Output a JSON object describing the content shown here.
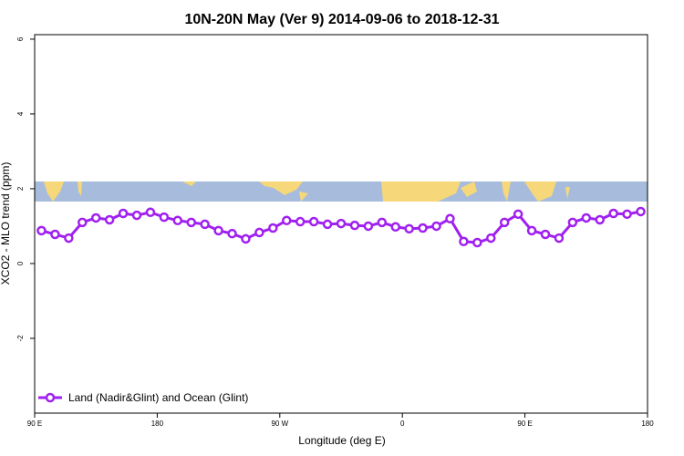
{
  "chart_data": {
    "type": "line",
    "title": "10N-20N May (Ver 9)   2014-09-06 to 2018-12-31",
    "x_label": "Longitude (deg E)",
    "y_label": "XCO2 - MLO trend (ppm)",
    "x": [
      95,
      105,
      115,
      125,
      135,
      145,
      155,
      165,
      175,
      185,
      195,
      205,
      215,
      225,
      235,
      245,
      255,
      265,
      275,
      285,
      295,
      305,
      315,
      325,
      335,
      345,
      355,
      365,
      375,
      385,
      395,
      405,
      415,
      425,
      435,
      445,
      455,
      465,
      475,
      485,
      495,
      505,
      515,
      525,
      535
    ],
    "series": [
      {
        "name": "Land (Nadir&Glint) and Ocean (Glint)",
        "color": "#a020f0",
        "values": [
          0.88,
          0.78,
          0.68,
          1.1,
          1.22,
          1.17,
          1.34,
          1.29,
          1.37,
          1.24,
          1.15,
          1.1,
          1.05,
          0.88,
          0.8,
          0.66,
          0.83,
          0.95,
          1.15,
          1.12,
          1.12,
          1.05,
          1.07,
          1.02,
          1.0,
          1.1,
          0.98,
          0.93,
          0.95,
          1.0,
          1.2,
          0.59,
          0.56,
          0.68,
          1.1,
          1.32,
          0.88,
          0.78,
          0.68,
          1.1,
          1.22,
          1.17,
          1.34,
          1.32,
          1.39
        ]
      }
    ],
    "xlim": [
      90,
      540
    ],
    "xticks": [
      {
        "value": 90,
        "label": "90 E"
      },
      180,
      {
        "value": 270,
        "label": "90 W"
      },
      {
        "value": 360,
        "label": "0"
      },
      {
        "value": 450,
        "label": "90 E"
      },
      {
        "value": 540,
        "label": "180"
      }
    ],
    "ylim": [
      -4,
      6.12
    ],
    "yticks": [
      6,
      4,
      2,
      0,
      -2
    ],
    "legend": "bottom-left"
  }
}
